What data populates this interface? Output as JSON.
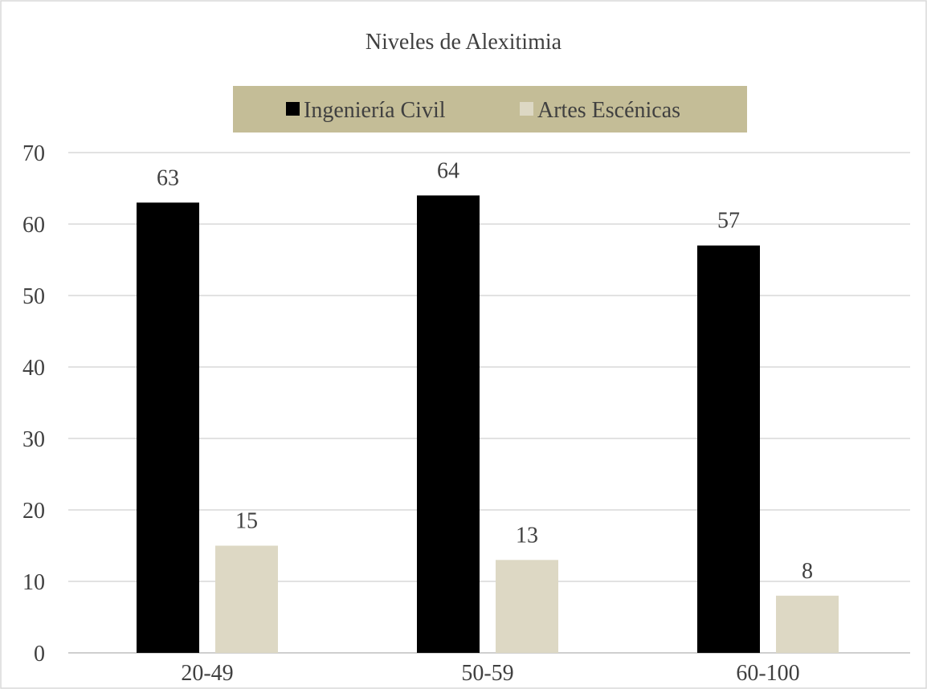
{
  "chart_data": {
    "type": "bar",
    "title": "Niveles de Alexitimia",
    "categories": [
      "20-49",
      "50-59",
      "60-100"
    ],
    "series": [
      {
        "name": "Ingeniería Civil",
        "values": [
          63,
          64,
          57
        ],
        "color": "#000000"
      },
      {
        "name": "Artes Escénicas",
        "values": [
          15,
          13,
          8
        ],
        "color": "#ddd8c4"
      }
    ],
    "ylim": [
      0,
      70
    ],
    "yticks": [
      0,
      10,
      20,
      30,
      40,
      50,
      60,
      70
    ],
    "grid": true,
    "legend_position": "top",
    "legend_background": "#c4bd97",
    "data_labels": true
  }
}
